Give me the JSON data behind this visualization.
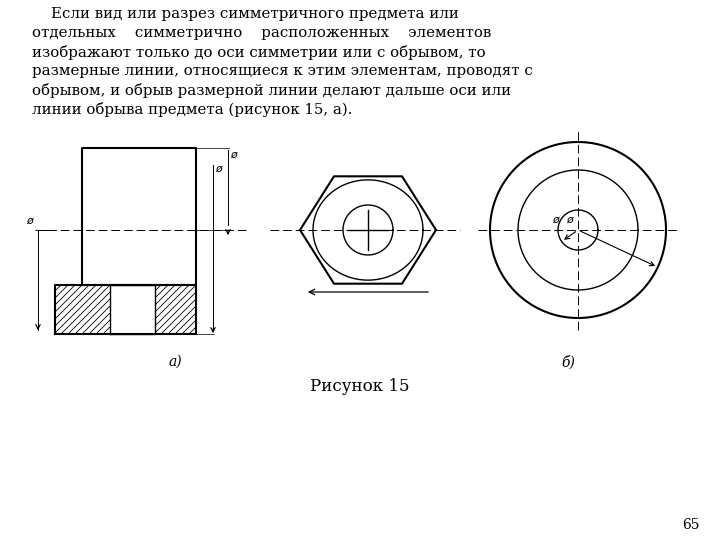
{
  "title": "Рисунок 15",
  "page_num": "65",
  "bg_color": "#ffffff",
  "text_color": "#000000",
  "label_a": "а)",
  "label_b": "б)"
}
